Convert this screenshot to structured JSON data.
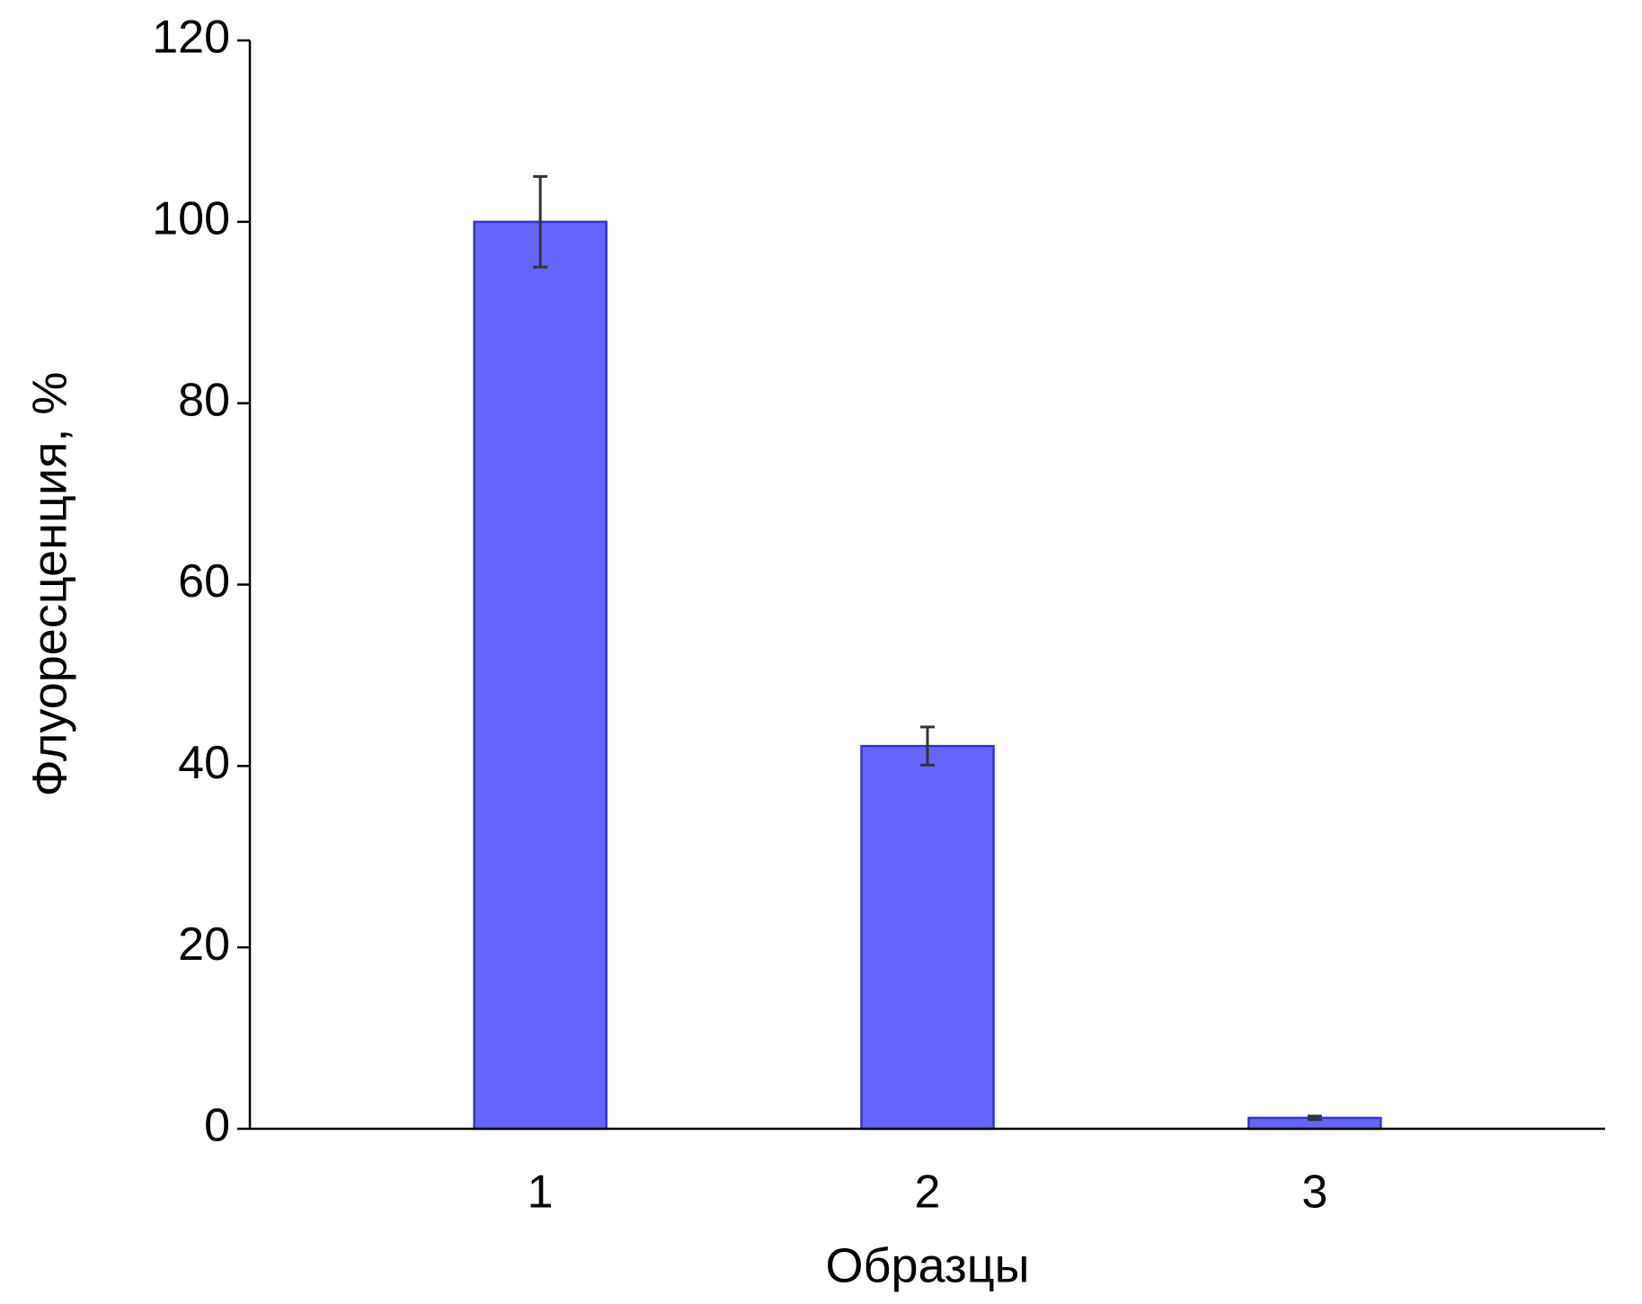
{
  "chart_data": {
    "type": "bar",
    "x_label": "Образцы",
    "y_label": "Флуоресценция, %",
    "categories": [
      "1",
      "2",
      "3"
    ],
    "values": [
      100,
      42.2,
      1.2
    ],
    "errors": [
      5,
      2.1,
      0.2
    ],
    "color": "#6666ff",
    "edge_color": "#3333cc",
    "ylim": [
      0,
      120
    ],
    "yticks": [
      0,
      20,
      40,
      60,
      80,
      100,
      120
    ],
    "grid": false
  }
}
